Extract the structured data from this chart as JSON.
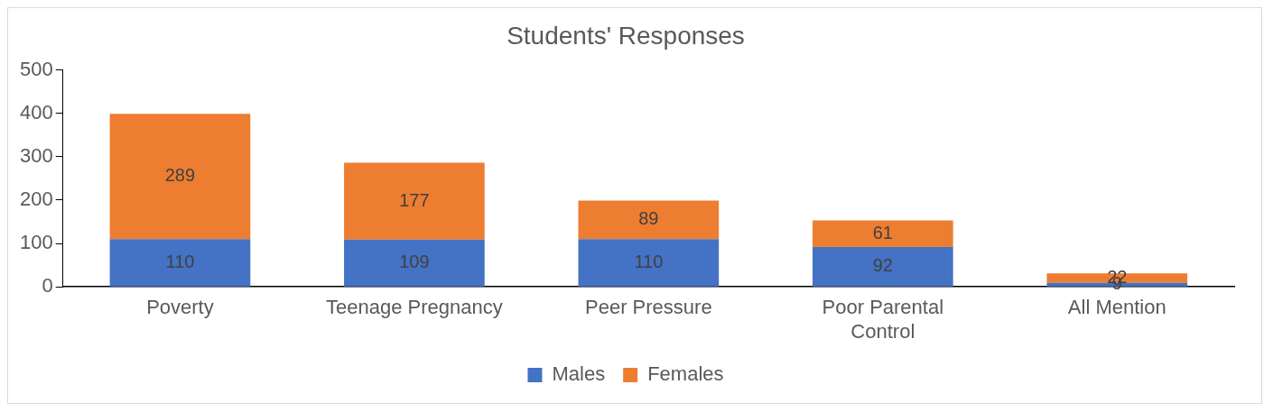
{
  "chart_data": {
    "type": "bar",
    "title": "Students' Responses",
    "categories": [
      "Poverty",
      "Teenage Pregnancy",
      "Peer Pressure",
      "Poor Parental Control",
      "All Mention"
    ],
    "stacked": true,
    "series": [
      {
        "name": "Males",
        "color": "#4472c4",
        "values": [
          110,
          109,
          110,
          92,
          9
        ]
      },
      {
        "name": "Females",
        "color": "#ed7d31",
        "values": [
          289,
          177,
          89,
          61,
          22
        ]
      }
    ],
    "ylim": [
      0,
      500
    ],
    "yticks": [
      0,
      100,
      200,
      300,
      400,
      500
    ],
    "grid": false,
    "legend": "bottom",
    "data_labels": true
  }
}
